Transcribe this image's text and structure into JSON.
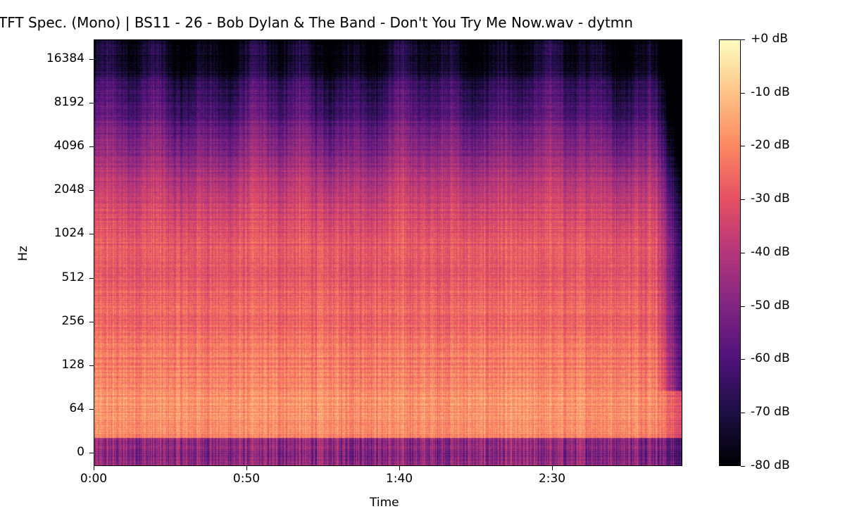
{
  "chart_data": {
    "type": "heatmap",
    "title": "TFT Spec. (Mono) | BS11 - 26 - Bob Dylan & The Band - Don't You Try Me Now.wav - dytmn",
    "xlabel": "Time",
    "ylabel": "Hz",
    "x_ticks": [
      "0:00",
      "0:50",
      "1:40",
      "2:30"
    ],
    "x_tick_seconds": [
      0,
      50,
      100,
      150
    ],
    "x_range_seconds": [
      0,
      192
    ],
    "y_scale": "log",
    "y_ticks": [
      "16384",
      "8192",
      "4096",
      "2048",
      "1024",
      "512",
      "256",
      "128",
      "64",
      "0"
    ],
    "colorbar": {
      "ticks": [
        "+0 dB",
        "-10 dB",
        "-20 dB",
        "-30 dB",
        "-40 dB",
        "-50 dB",
        "-60 dB",
        "-70 dB",
        "-80 dB"
      ],
      "range_db": [
        -80,
        0
      ],
      "colormap": "magma"
    },
    "colormap_stops": [
      "#000004",
      "#1c1044",
      "#4f127b",
      "#812581",
      "#b5367a",
      "#e55064",
      "#fb8761",
      "#fec287",
      "#fcfdbf"
    ]
  }
}
